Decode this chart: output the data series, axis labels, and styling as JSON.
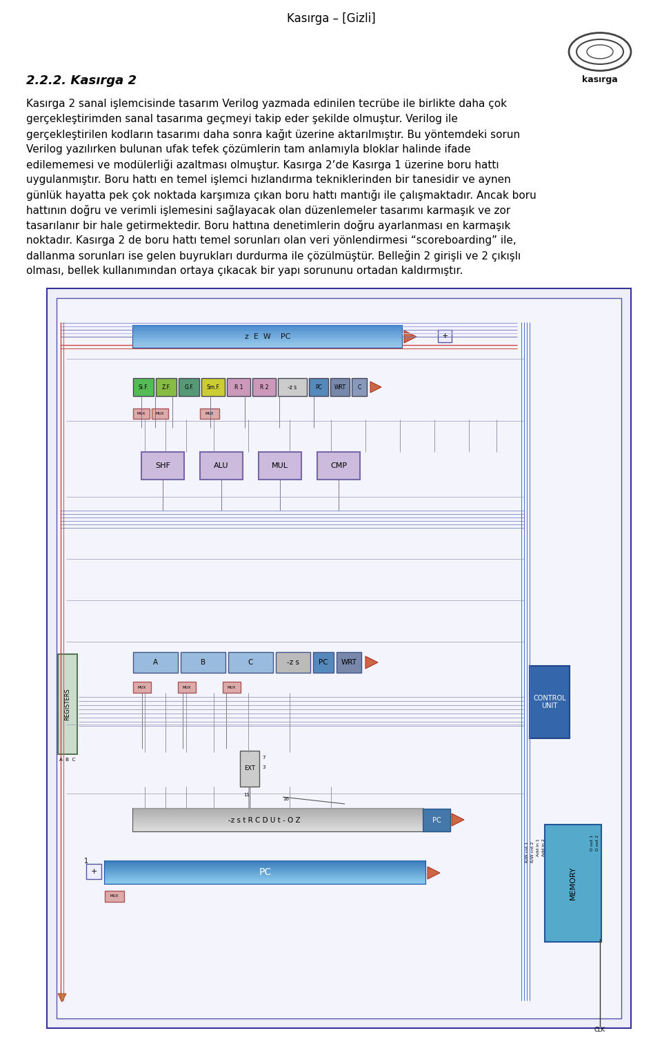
{
  "header": "Kasırga – [Gizli]",
  "section_title": "2.2.2. Kasırga 2",
  "body_text": [
    "Kasırga 2 sanal işlemcisinde tasarım Verilog yazmada edinilen tecrübe ile birlikte daha çok",
    "gerçekleştirimden sanal tasarıma geçmeyi takip eder şekilde olmuştur. Verilog ile",
    "gerçekleştirilen kodların tasarımı daha sonra kağıt üzerine aktarılmıştır. Bu yöntemdeki sorun",
    "Verilog yazılırken bulunan ufak tefek çözümlerin tam anlamıyla bloklar halinde ifade",
    "edilememesi ve modülerliği azaltması olmuştur. Kasırga 2’de Kasırga 1 üzerine boru hattı",
    "uygulanmıştır. Boru hattı en temel işlemci hızlandırma tekniklerinden bir tanesidir ve aynen",
    "günlük hayatta pek çok noktada karşımıza çıkan boru hattı mantığı ile çalışmaktadır. Ancak boru",
    "hattının doğru ve verimli işlemesini sağlayacak olan düzenlemeler tasarımı karmaşık ve zor",
    "tasarılanır bir hale getirmektedir. Boru hattına denetimlerin doğru ayarlanması en karmaşık",
    "noktadır. Kasırga 2 de boru hattı temel sorunları olan veri yönlendirmesi “scoreboarding” ile,",
    "dallanma sorunları ise gelen buyrukları durdurma ile çözülmüştür. Belleğin 2 girişli ve 2 çıkışlı",
    "olması, bellek kullanımından ortaya çıkacak bir yapı sorununu ortadan kaldırmıştır."
  ],
  "bg_color": "#ffffff",
  "text_color": "#000000",
  "header_color": "#000000",
  "diagram_border_color": "#4444aa",
  "diagram_bg": "#f0f0f8"
}
